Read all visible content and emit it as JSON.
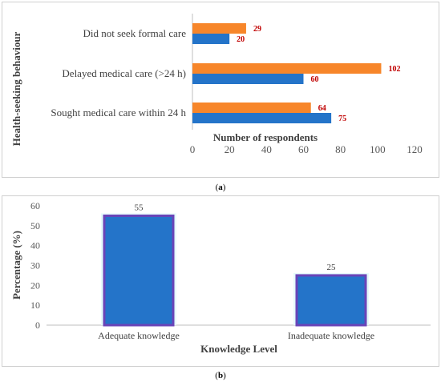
{
  "chart_data": [
    {
      "type": "bar",
      "orientation": "horizontal",
      "categories": [
        "Did not seek formal care",
        "Delayed medical care (>24 h)",
        "Sought medical care within 24 h"
      ],
      "series": [
        {
          "values": [
            29,
            102,
            64
          ],
          "color": "#f7862a"
        },
        {
          "values": [
            20,
            60,
            75
          ],
          "color": "#2474c9"
        }
      ],
      "xlabel": "Number of respondents",
      "ylabel": "Health-seeking behaviour",
      "xlim": [
        0,
        120
      ],
      "xticks": [
        0,
        20,
        40,
        60,
        80,
        100,
        120
      ],
      "label_color": "#c00000",
      "grid": false,
      "legend": false
    },
    {
      "type": "bar",
      "categories": [
        "Adequate knowledge",
        "Inadequate knowledge"
      ],
      "values": [
        55,
        25
      ],
      "color": "#2474c9",
      "edge_color": "#6a44b8",
      "xlabel": "Knowledge Level",
      "ylabel": "Percentage (%)",
      "ylim": [
        0,
        60
      ],
      "yticks": [
        0,
        10,
        20,
        30,
        40,
        50,
        60
      ],
      "grid": false,
      "legend": false
    }
  ],
  "captions": {
    "a": "a",
    "b": "b"
  }
}
